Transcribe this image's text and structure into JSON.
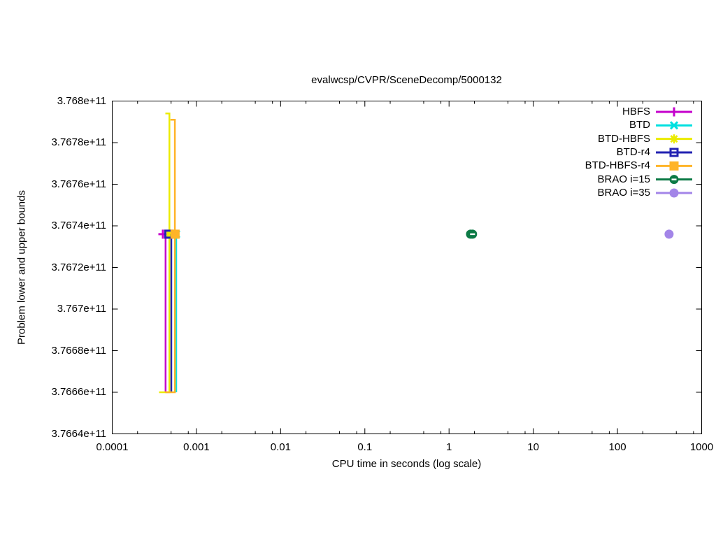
{
  "title": "evalwcsp/CVPR/SceneDecomp/5000132",
  "chart_data": {
    "type": "line",
    "title": "evalwcsp/CVPR/SceneDecomp/5000132",
    "xlabel": "CPU time in seconds (log scale)",
    "ylabel": "Problem lower and upper bounds",
    "x_scale": "log",
    "xlim": [
      0.0001,
      1000
    ],
    "ylim": [
      376640000000,
      376800000000
    ],
    "grid": false,
    "legend_position": "top-right-inside",
    "x_ticks": [
      {
        "v": 0.0001,
        "label": "0.0001"
      },
      {
        "v": 0.001,
        "label": "0.001"
      },
      {
        "v": 0.01,
        "label": "0.01"
      },
      {
        "v": 0.1,
        "label": "0.1"
      },
      {
        "v": 1,
        "label": "1"
      },
      {
        "v": 10,
        "label": "10"
      },
      {
        "v": 100,
        "label": "100"
      },
      {
        "v": 1000,
        "label": "1000"
      }
    ],
    "x_minor_multipliers": [
      2,
      5,
      8
    ],
    "y_ticks": [
      {
        "v": 376800000000,
        "label": "3.768e+11"
      },
      {
        "v": 376780000000,
        "label": "3.7678e+11"
      },
      {
        "v": 376760000000,
        "label": "3.7676e+11"
      },
      {
        "v": 376740000000,
        "label": "3.7674e+11"
      },
      {
        "v": 376720000000,
        "label": "3.7672e+11"
      },
      {
        "v": 376700000000,
        "label": "3.767e+11"
      },
      {
        "v": 376680000000,
        "label": "3.7668e+11"
      },
      {
        "v": 376660000000,
        "label": "3.7666e+11"
      },
      {
        "v": 376640000000,
        "label": "3.7664e+11"
      }
    ],
    "series": [
      {
        "name": "HBFS",
        "color": "#c400cc",
        "marker": "plus",
        "lines": [
          [
            [
              0.00043,
              376736000000
            ],
            [
              0.00043,
              376660000000
            ]
          ]
        ],
        "points": [
          [
            0.0004,
            376736000000
          ]
        ]
      },
      {
        "name": "BTD",
        "color": "#00e0e0",
        "marker": "cross",
        "lines": [
          [
            [
              0.000575,
              376736000000
            ],
            [
              0.000575,
              376660000000
            ]
          ]
        ],
        "points": [
          [
            0.000575,
            376736000000
          ]
        ]
      },
      {
        "name": "BTD-HBFS",
        "color": "#ebeb00",
        "marker": "star",
        "lines": [
          [
            [
              0.000428,
              376794000000
            ],
            [
              0.000478,
              376794000000
            ],
            [
              0.000478,
              376660000000
            ],
            [
              0.00036,
              376660000000
            ]
          ]
        ],
        "points": [
          [
            0.000478,
            376736000000
          ]
        ]
      },
      {
        "name": "BTD-r4",
        "color": "#2222b2",
        "marker": "square-open",
        "lines": [
          [
            [
              0.000503,
              376736000000
            ],
            [
              0.000503,
              376660000000
            ]
          ]
        ],
        "points": [
          [
            0.00047,
            376736000000
          ]
        ]
      },
      {
        "name": "BTD-HBFS-r4",
        "color": "#ffb428",
        "marker": "square-filled",
        "lines": [
          [
            [
              0.000492,
              376791000000
            ],
            [
              0.000555,
              376791000000
            ],
            [
              0.000555,
              376660000000
            ],
            [
              0.000428,
              376660000000
            ]
          ]
        ],
        "points": [
          [
            0.000558,
            376736000000
          ]
        ]
      },
      {
        "name": "BRAO i=15",
        "color": "#0c7a45",
        "marker": "circle-dash",
        "lines": [],
        "points": [
          [
            1.8,
            376736000000
          ],
          [
            1.9,
            376736000000
          ]
        ]
      },
      {
        "name": "BRAO i=35",
        "color": "#a385e8",
        "marker": "circle-filled",
        "lines": [],
        "points": [
          [
            410,
            376736000000
          ]
        ]
      }
    ]
  }
}
